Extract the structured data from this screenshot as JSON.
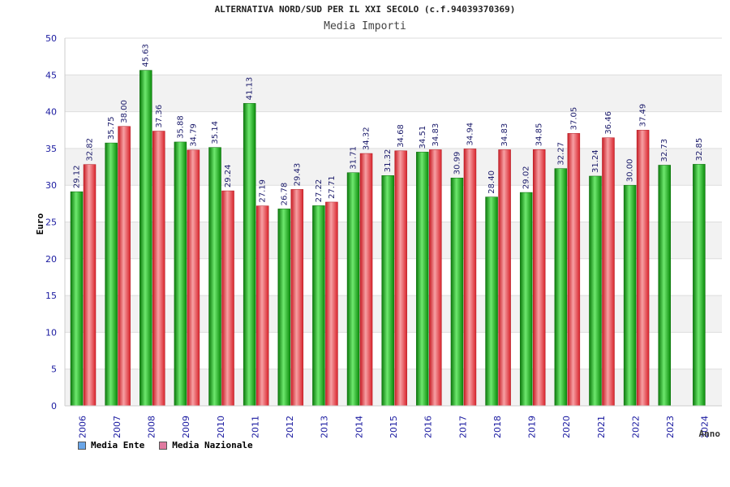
{
  "chart_data": {
    "type": "bar",
    "title": "ALTERNATIVA NORD/SUD PER IL XXI SECOLO (c.f.94039370369)",
    "subtitle": "Media Importi",
    "ylabel": "Euro",
    "xlabel": "Anno",
    "ylim": [
      0,
      50
    ],
    "yticks": [
      0,
      5,
      10,
      15,
      20,
      25,
      30,
      35,
      40,
      45,
      50
    ],
    "grid": true,
    "legend_position": "bottom-left",
    "categories": [
      "2006",
      "2007",
      "2008",
      "2009",
      "2010",
      "2011",
      "2012",
      "2013",
      "2014",
      "2015",
      "2016",
      "2017",
      "2018",
      "2019",
      "2020",
      "2021",
      "2022",
      "2023",
      "2024"
    ],
    "series": [
      {
        "name": "Media Ente",
        "color": "#1aa81a",
        "swatch": "#6aa6e8",
        "values": [
          29.12,
          35.75,
          45.63,
          35.88,
          35.14,
          41.13,
          26.78,
          27.22,
          31.71,
          31.32,
          34.51,
          30.99,
          28.4,
          29.02,
          32.27,
          31.24,
          30.0,
          32.73,
          32.85
        ],
        "labels": [
          "29.12",
          "35.75",
          "45.63",
          "35.88",
          "35.14",
          "41.13",
          "26.78",
          "27.22",
          "31.71",
          "31.32",
          "34.51",
          "30.99",
          "28.40",
          "29.02",
          "32.27",
          "31.24",
          "30.00",
          "32.73",
          "32.85"
        ]
      },
      {
        "name": "Media Nazionale",
        "color": "#e8323c",
        "swatch": "#e07aa0",
        "values": [
          32.82,
          38.0,
          37.36,
          34.79,
          29.24,
          27.19,
          29.43,
          27.71,
          34.32,
          34.68,
          34.83,
          34.94,
          34.83,
          34.85,
          37.05,
          36.46,
          37.49,
          null,
          null
        ],
        "labels": [
          "32.82",
          "38.00",
          "37.36",
          "34.79",
          "29.24",
          "27.19",
          "29.43",
          "27.71",
          "34.32",
          "34.68",
          "34.83",
          "34.94",
          "34.83",
          "34.85",
          "37.05",
          "36.46",
          "37.49",
          null,
          null
        ]
      }
    ]
  }
}
